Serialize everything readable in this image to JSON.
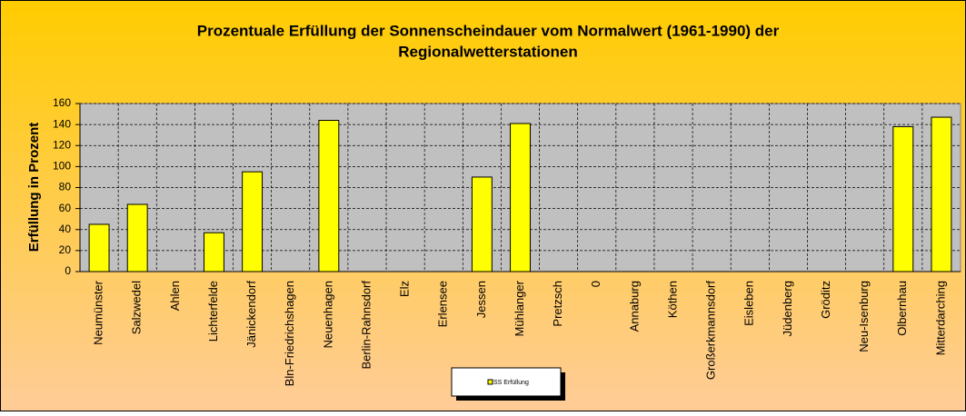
{
  "chart_data": {
    "type": "bar",
    "title": [
      "Prozentuale Erfüllung der Sonnenscheindauer vom Normalwert (1961-1990) der",
      "Regionalwetterstationen"
    ],
    "y_label": "Erfüllung in Prozent",
    "categories": [
      "Neumünster",
      "Salzwedel",
      "Ahlen",
      "Lichterfelde",
      "Jänickendorf",
      "Bln-Friedrichshagen",
      "Neuenhagen",
      "Berlin-Rahnsdorf",
      "Elz",
      "Erlensee",
      "Jessen",
      "Mühlanger",
      "Pretzsch",
      "0",
      "Annaburg",
      "Köthen",
      "Großerkmannsdorf",
      "Eisleben",
      "Jüdenberg",
      "Gröditz",
      "Neu-Isenburg",
      "Olbernhau",
      "Mitterdarching"
    ],
    "series": [
      {
        "name": "SS Erfüllung",
        "color": "#ffff00",
        "values": [
          45,
          64,
          null,
          37,
          95,
          null,
          144,
          null,
          null,
          null,
          90,
          141,
          null,
          null,
          null,
          null,
          null,
          null,
          null,
          null,
          null,
          138,
          147
        ]
      }
    ],
    "ylim": [
      0,
      160
    ],
    "yticks": [
      0,
      20,
      40,
      60,
      80,
      100,
      120,
      140,
      160
    ],
    "grid": true
  }
}
